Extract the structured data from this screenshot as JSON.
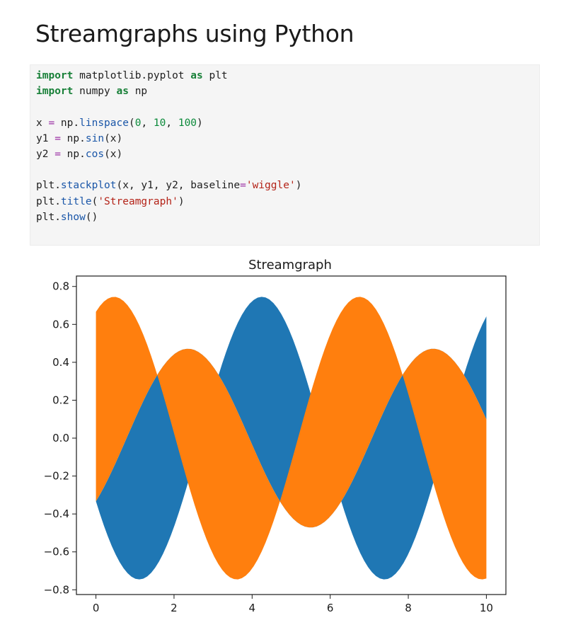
{
  "heading": "Streamgraphs using Python",
  "code": {
    "line1": {
      "kw1": "import",
      "mod": " matplotlib.pyplot ",
      "kw2": "as",
      "alias": " plt"
    },
    "line2": {
      "kw1": "import",
      "mod": " numpy ",
      "kw2": "as",
      "alias": " np"
    },
    "line3": {
      "lhs": "x ",
      "eq": "=",
      "obj": " np.",
      "fn": "linspace",
      "open": "(",
      "a": "0",
      "c1": ", ",
      "b": "10",
      "c2": ", ",
      "c": "100",
      "close": ")"
    },
    "line4": {
      "lhs": "y1 ",
      "eq": "=",
      "obj": " np.",
      "fn": "sin",
      "args": "(x)"
    },
    "line5": {
      "lhs": "y2 ",
      "eq": "=",
      "obj": " np.",
      "fn": "cos",
      "args": "(x)"
    },
    "line6": {
      "obj": "plt.",
      "fn": "stackplot",
      "args": "(x, y1, y2, baseline",
      "eq": "=",
      "str": "'wiggle'",
      "close": ")"
    },
    "line7": {
      "obj": "plt.",
      "fn": "title",
      "open": "(",
      "str": "'Streamgraph'",
      "close": ")"
    },
    "line8": {
      "obj": "plt.",
      "fn": "show",
      "args": "()"
    }
  },
  "chart_data": {
    "type": "area",
    "title": "Streamgraph",
    "baseline": "wiggle",
    "x_domain": [
      0,
      10
    ],
    "samples": 100,
    "series": [
      {
        "color": "#1f77b4"
      },
      {
        "color": "#ff7f0e"
      }
    ],
    "xlim": [
      -0.5,
      10.5
    ],
    "ylim": [
      -0.825,
      0.855
    ],
    "xticks": [
      0,
      2,
      4,
      6,
      8,
      10
    ],
    "yticks": [
      -0.8,
      -0.6,
      -0.4,
      -0.2,
      0.0,
      0.2,
      0.4,
      0.6,
      0.8
    ],
    "xtick_labels": [
      "0",
      "2",
      "4",
      "6",
      "8",
      "10"
    ],
    "ytick_labels": [
      "−0.8",
      "−0.6",
      "−0.4",
      "−0.2",
      "0.0",
      "0.2",
      "0.4",
      "0.6",
      "0.8"
    ],
    "grid": false
  }
}
